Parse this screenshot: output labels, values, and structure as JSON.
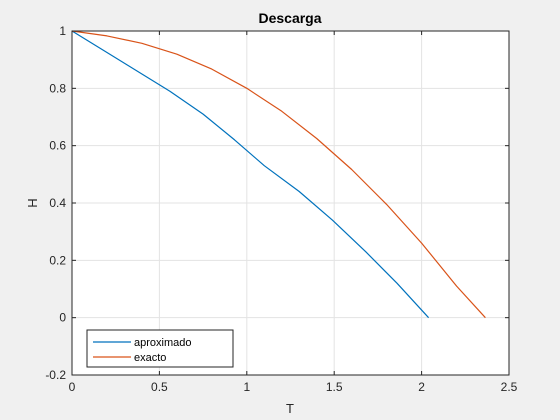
{
  "chart_data": {
    "type": "line",
    "title": "Descarga",
    "xlabel": "T",
    "ylabel": "H",
    "xlim": [
      0,
      2.5
    ],
    "ylim": [
      -0.2,
      1
    ],
    "xticks": [
      0,
      0.5,
      1,
      1.5,
      2,
      2.5
    ],
    "xtick_labels": [
      "0",
      "0.5",
      "1",
      "1.5",
      "2",
      "2.5"
    ],
    "yticks": [
      -0.2,
      0,
      0.2,
      0.4,
      0.6,
      0.8,
      1
    ],
    "ytick_labels": [
      "-0.2",
      "0",
      "0.2",
      "0.4",
      "0.6",
      "0.8",
      "1"
    ],
    "grid": true,
    "legend_position": "bottom-left",
    "series": [
      {
        "name": "aproximado",
        "color": "#0072bd",
        "x": [
          0,
          0.2,
          0.4,
          0.56,
          0.75,
          0.93,
          1.1,
          1.3,
          1.49,
          1.68,
          1.86,
          2.04
        ],
        "y": [
          1,
          0.925,
          0.85,
          0.79,
          0.71,
          0.62,
          0.53,
          0.44,
          0.34,
          0.23,
          0.12,
          0.0
        ]
      },
      {
        "name": "exacto",
        "color": "#d95319",
        "x": [
          0,
          0.2,
          0.4,
          0.6,
          0.8,
          1.0,
          1.2,
          1.4,
          1.6,
          1.8,
          2.0,
          2.2,
          2.365
        ],
        "y": [
          1,
          0.983,
          0.957,
          0.919,
          0.867,
          0.8,
          0.72,
          0.625,
          0.517,
          0.395,
          0.26,
          0.11,
          0.0
        ]
      }
    ]
  }
}
